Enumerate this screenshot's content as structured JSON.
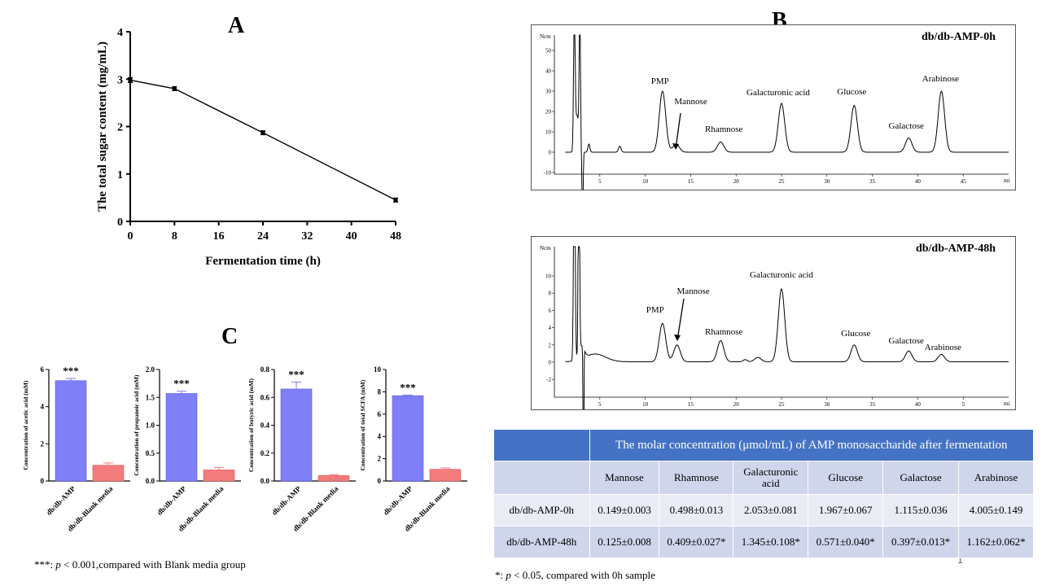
{
  "panels": {
    "a": "A",
    "b": "B",
    "c": "C"
  },
  "panel_a": {
    "ylabel": "The total sugar content (mg/mL)",
    "xlabel": "Fermentation time (h)",
    "yticks": [
      "0",
      "1",
      "2",
      "3",
      "4"
    ],
    "xticks": [
      "0",
      "8",
      "16",
      "24",
      "32",
      "40",
      "48"
    ]
  },
  "chromatograms": {
    "top": {
      "title": "db/db-AMP-0h",
      "unit_label": "Ncm",
      "xaxis_end": "mi",
      "yticks": [
        "50",
        "40",
        "30",
        "20",
        "10",
        "0",
        "-10"
      ],
      "xticks": [
        "5",
        "10",
        "15",
        "20",
        "25",
        "30",
        "35",
        "40",
        "45"
      ],
      "peak_labels": [
        "PMP",
        "Mannose",
        "Rhamnose",
        "Galacturonic acid",
        "Glucose",
        "Galactose",
        "Arabinose"
      ]
    },
    "bottom": {
      "title": "db/db-AMP-48h",
      "unit_label": "Ncm",
      "xaxis_end": "mi",
      "yticks": [
        "10",
        "8",
        "6",
        "4",
        "2",
        "0",
        "-2"
      ],
      "xticks": [
        "5",
        "10",
        "15",
        "20",
        "25",
        "30",
        "35",
        "40",
        "5"
      ],
      "peak_labels": [
        "PMP",
        "Mannose",
        "Rhamnose",
        "Galacturonic acid",
        "Glucose",
        "Galactose",
        "Arabinose"
      ]
    }
  },
  "table": {
    "title": "The molar concentration (μmol/mL) of AMP monosaccharide after fermentation",
    "columns": [
      "Mannose",
      "Rhamnose",
      "Galacturonic acid",
      "Glucose",
      "Galactose",
      "Arabinose"
    ],
    "rows": [
      {
        "label": "db/db-AMP-0h",
        "cells": [
          "0.149±0.003",
          "0.498±0.013",
          "2.053±0.081",
          "1.967±0.067",
          "1.115±0.036",
          "4.005±0.149"
        ]
      },
      {
        "label": "db/db-AMP-48h",
        "cells": [
          "0.125±0.008",
          "0.409±0.027*",
          "1.345±0.108*",
          "0.571±0.040*",
          "0.397±0.013*",
          "1.162±0.062*"
        ]
      }
    ]
  },
  "notes": {
    "c_prefix": "***: ",
    "c_p": "p",
    "c_rest": " < 0.001,compared with Blank media group",
    "b_prefix": "*: ",
    "b_p": "p",
    "b_rest": " < 0.05, compared with 0h sample",
    "page_mark": "1"
  },
  "chart_data": [
    {
      "type": "line",
      "title": "",
      "xlabel": "Fermentation time (h)",
      "ylabel": "The total sugar content (mg/mL)",
      "x": [
        0,
        8,
        24,
        48
      ],
      "series": [
        {
          "values": [
            2.98,
            2.8,
            1.87,
            0.45
          ],
          "errors": [
            0.05,
            0.04,
            0.04,
            0.04
          ]
        }
      ],
      "xlim": [
        0,
        48
      ],
      "ylim": [
        0,
        4
      ]
    },
    {
      "type": "line",
      "title": "db/db-AMP-0h",
      "xlim": [
        0,
        50
      ],
      "ylim": [
        -10,
        60
      ],
      "peaks": [
        {
          "label": "PMP",
          "x": 11.9,
          "y": 30
        },
        {
          "label": "Mannose",
          "x": 13.4,
          "y": 4
        },
        {
          "label": "Rhamnose",
          "x": 18.3,
          "y": 5
        },
        {
          "label": "Galacturonic acid",
          "x": 25.0,
          "y": 24
        },
        {
          "label": "Glucose",
          "x": 33.0,
          "y": 23
        },
        {
          "label": "Galactose",
          "x": 39.0,
          "y": 7
        },
        {
          "label": "Arabinose",
          "x": 42.6,
          "y": 30
        }
      ]
    },
    {
      "type": "line",
      "title": "db/db-AMP-48h",
      "xlim": [
        0,
        50
      ],
      "ylim": [
        -2,
        12
      ],
      "peaks": [
        {
          "label": "PMP",
          "x": 11.9,
          "y": 4.5
        },
        {
          "label": "Mannose",
          "x": 13.5,
          "y": 2.0
        },
        {
          "label": "Rhamnose",
          "x": 18.3,
          "y": 2.5
        },
        {
          "label": "Galacturonic acid",
          "x": 25.0,
          "y": 8.5
        },
        {
          "label": "Glucose",
          "x": 33.0,
          "y": 2.0
        },
        {
          "label": "Galactose",
          "x": 39.0,
          "y": 1.3
        },
        {
          "label": "Arabinose",
          "x": 42.6,
          "y": 0.9
        }
      ]
    },
    {
      "type": "bar",
      "ylabel": "Concentration of acetic acid (mM)",
      "categories": [
        "db/db-AMP",
        "db/db-Blank media"
      ],
      "values": [
        5.4,
        0.85
      ],
      "errors": [
        0.12,
        0.12
      ],
      "yticks": [
        "0",
        "2",
        "4",
        "6"
      ],
      "ylim": [
        0,
        6
      ],
      "significance": "***",
      "colors": [
        "#7f7ff7",
        "#f47b7b"
      ]
    },
    {
      "type": "bar",
      "ylabel": "Concentration of propanoic acid (mM)",
      "categories": [
        "db/db-AMP",
        "db/db-Blank media"
      ],
      "values": [
        1.57,
        0.2
      ],
      "errors": [
        0.04,
        0.04
      ],
      "yticks": [
        "0.0",
        "0.5",
        "1.0",
        "1.5",
        "2.0"
      ],
      "ylim": [
        0,
        2
      ],
      "significance": "***",
      "colors": [
        "#7f7ff7",
        "#f47b7b"
      ]
    },
    {
      "type": "bar",
      "ylabel": "Concentration of butyric acid (mM)",
      "categories": [
        "db/db-AMP",
        "db/db-Blank media"
      ],
      "values": [
        0.66,
        0.04
      ],
      "errors": [
        0.05,
        0.005
      ],
      "yticks": [
        "0.0",
        "0.2",
        "0.4",
        "0.6",
        "0.8"
      ],
      "ylim": [
        0,
        0.8
      ],
      "significance": "***",
      "colors": [
        "#7f7ff7",
        "#f47b7b"
      ]
    },
    {
      "type": "bar",
      "ylabel": "Concentration of total SCFA (mM)",
      "categories": [
        "db/db-AMP",
        "db/db-Blank media"
      ],
      "values": [
        7.65,
        1.05
      ],
      "errors": [
        0.06,
        0.12
      ],
      "yticks": [
        "0",
        "2",
        "4",
        "6",
        "8",
        "10"
      ],
      "ylim": [
        0,
        10
      ],
      "significance": "***",
      "colors": [
        "#7f7ff7",
        "#f47b7b"
      ]
    }
  ]
}
